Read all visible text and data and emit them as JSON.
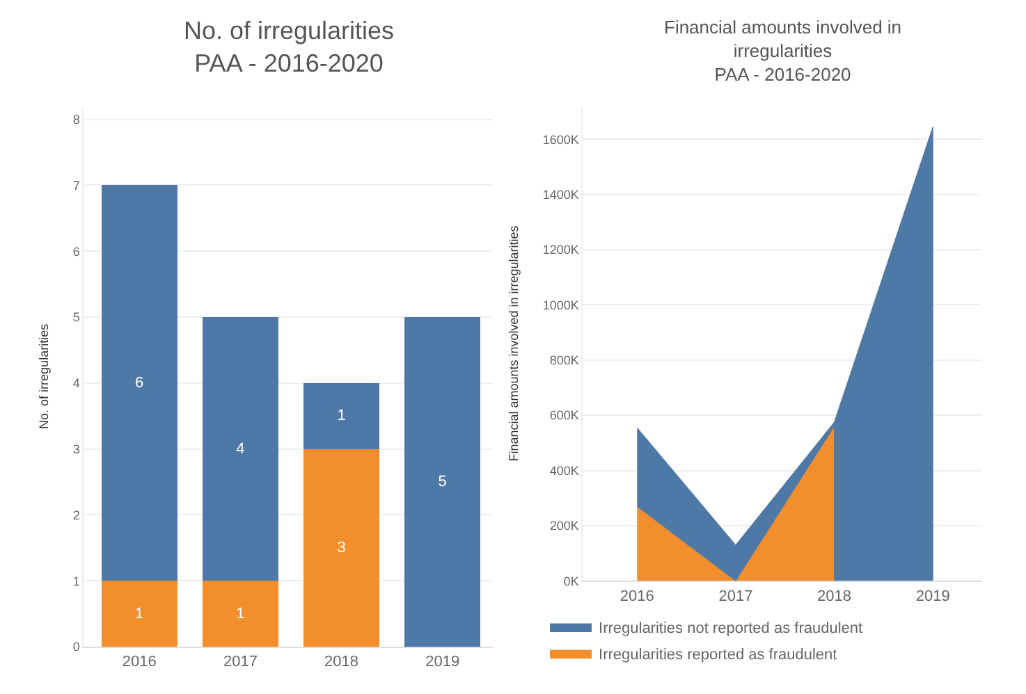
{
  "chart_data": [
    {
      "type": "bar",
      "stacked": true,
      "title": "No. of irregularities\nPAA - 2016-2020",
      "ylabel": "No. of irregularities",
      "categories": [
        "2016",
        "2017",
        "2018",
        "2019"
      ],
      "series": [
        {
          "color": "#f28e2b",
          "values": [
            1,
            1,
            3,
            0
          ],
          "value_labels": [
            "1",
            "1",
            "3",
            null
          ]
        },
        {
          "color": "#4e79a7",
          "values": [
            6,
            4,
            1,
            5
          ],
          "value_labels": [
            "6",
            "4",
            "1",
            "5"
          ]
        }
      ],
      "ylim": [
        0,
        8.2
      ],
      "yticks": [
        0,
        1,
        2,
        3,
        4,
        5,
        6,
        7,
        8
      ],
      "grid": "y",
      "legend": false
    },
    {
      "type": "area",
      "stacked": true,
      "title": "Financial amounts involved in\nirregularities\nPAA - 2016-2020",
      "ylabel": "Financial amounts involved in irregularities",
      "categories": [
        "2016",
        "2017",
        "2018",
        "2019"
      ],
      "series": [
        {
          "name": "Irregularities reported as fraudulent",
          "color": "#f28e2b",
          "values": [
            270000,
            0,
            560000,
            null
          ]
        },
        {
          "name": "Irregularities not reported as fraudulent",
          "color": "#4e79a7",
          "values": [
            285000,
            130000,
            15000,
            1645000
          ]
        }
      ],
      "ylim": [
        0,
        1720000
      ],
      "yticks": [
        {
          "value": 0,
          "label": "0K"
        },
        {
          "value": 200000,
          "label": "200K"
        },
        {
          "value": 400000,
          "label": "400K"
        },
        {
          "value": 600000,
          "label": "600K"
        },
        {
          "value": 800000,
          "label": "800K"
        },
        {
          "value": 1000000,
          "label": "1000K"
        },
        {
          "value": 1200000,
          "label": "1200K"
        },
        {
          "value": 1400000,
          "label": "1400K"
        },
        {
          "value": 1600000,
          "label": "1600K"
        }
      ],
      "grid": "y",
      "legend": "bottom"
    }
  ]
}
